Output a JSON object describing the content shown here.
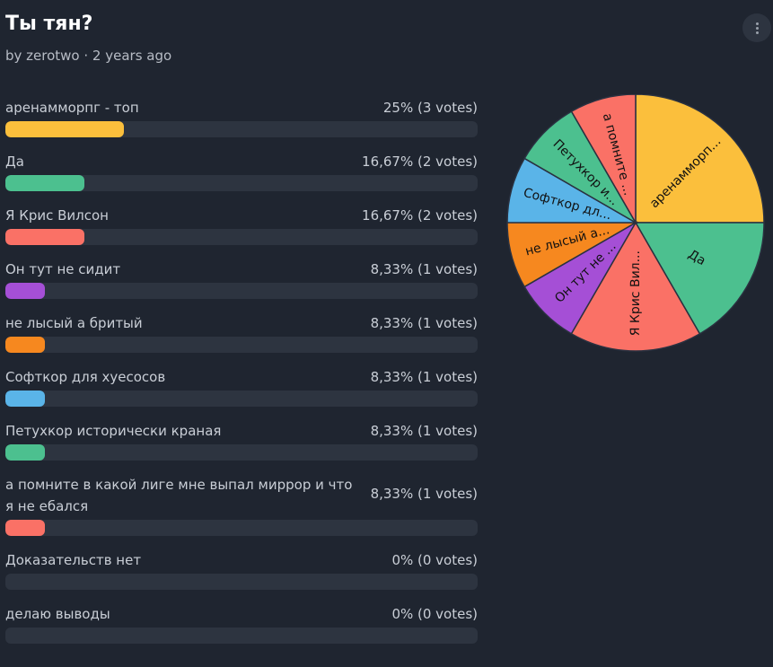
{
  "poll": {
    "title": "Ты тян?",
    "byline": "by zerotwo · 2 years ago"
  },
  "options": [
    {
      "label": "аренамморпг - топ",
      "stat": "25% (3 votes)",
      "percent": 25,
      "color": "#fbbf3c"
    },
    {
      "label": "Да",
      "stat": "16,67% (2 votes)",
      "percent": 16.67,
      "color": "#4cc08f"
    },
    {
      "label": "Я Крис Вилсон",
      "stat": "16,67% (2 votes)",
      "percent": 16.67,
      "color": "#fa7166"
    },
    {
      "label": "Он тут не сидит",
      "stat": "8,33% (1 votes)",
      "percent": 8.33,
      "color": "#a54fd6"
    },
    {
      "label": "не лысый а бритый",
      "stat": "8,33% (1 votes)",
      "percent": 8.33,
      "color": "#f6881f"
    },
    {
      "label": "Софткор для хуесосов",
      "stat": "8,33% (1 votes)",
      "percent": 8.33,
      "color": "#5ab4e8"
    },
    {
      "label": "Петухкор исторически краная",
      "stat": "8,33% (1 votes)",
      "percent": 8.33,
      "color": "#4cc08f"
    },
    {
      "label": "а помните в какой лиге мне выпал миррор и что я не ебался",
      "stat": "8,33% (1 votes)",
      "percent": 8.33,
      "color": "#fa7166"
    },
    {
      "label": "Доказательств нет",
      "stat": "0% (0 votes)",
      "percent": 0,
      "color": "#fbbf3c"
    },
    {
      "label": "делаю выводы",
      "stat": "0% (0 votes)",
      "percent": 0,
      "color": "#4cc08f"
    }
  ],
  "chart_data": {
    "type": "pie",
    "slices": [
      {
        "label": "аренамморп...",
        "value": 25,
        "color": "#fbbf3c"
      },
      {
        "label": "Да",
        "value": 16.67,
        "color": "#4cc08f"
      },
      {
        "label": "Я Крис Вил...",
        "value": 16.67,
        "color": "#fa7166"
      },
      {
        "label": "Он тут не ...",
        "value": 8.33,
        "color": "#a54fd6"
      },
      {
        "label": "не лысый а...",
        "value": 8.33,
        "color": "#f6881f"
      },
      {
        "label": "Софткор дл...",
        "value": 8.33,
        "color": "#5ab4e8"
      },
      {
        "label": "Петухкор и...",
        "value": 8.33,
        "color": "#4cc08f"
      },
      {
        "label": "а помните ...",
        "value": 8.33,
        "color": "#fa7166"
      }
    ]
  }
}
